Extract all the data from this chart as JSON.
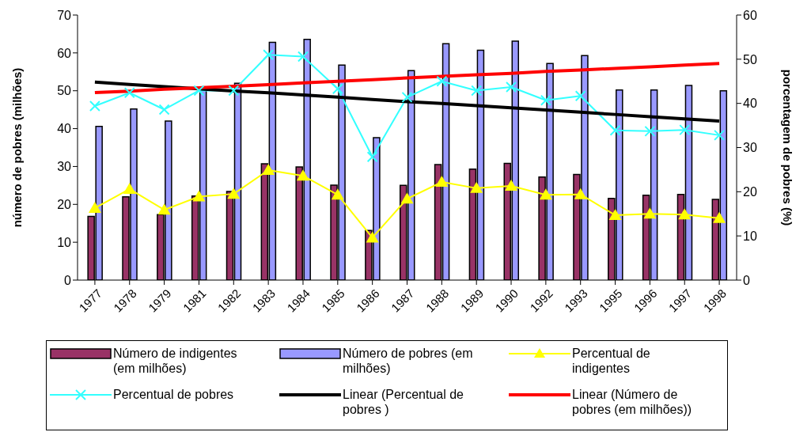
{
  "chart_data": {
    "type": "bar",
    "categories": [
      "1977",
      "1978",
      "1979",
      "1981",
      "1982",
      "1983",
      "1984",
      "1985",
      "1986",
      "1987",
      "1988",
      "1989",
      "1990",
      "1992",
      "1993",
      "1995",
      "1996",
      "1997",
      "1998"
    ],
    "ylabel": "número de pobres (milhões)",
    "y2label": "porcentagem de pobres (%)",
    "ylim": [
      0,
      70
    ],
    "yticks": [
      0,
      10,
      20,
      30,
      40,
      50,
      60,
      70
    ],
    "y2lim": [
      0,
      60
    ],
    "y2ticks": [
      0,
      10,
      20,
      30,
      40,
      50,
      60
    ],
    "legend": "bottom",
    "series": [
      {
        "name": "Número de indigentes (em milhões)",
        "color": "#993366",
        "values": [
          16.8,
          22,
          17.3,
          22.2,
          23.4,
          30.7,
          29.9,
          25.1,
          13.1,
          25,
          30.5,
          29.3,
          30.8,
          27.2,
          27.9,
          21.6,
          22.4,
          22.6,
          21.3
        ]
      },
      {
        "name": "Número de pobres (em milhões)",
        "color": "#9999ff",
        "values": [
          40.6,
          45.2,
          42,
          50.5,
          52,
          62.8,
          63.6,
          56.8,
          37.6,
          55.3,
          62.4,
          60.7,
          63.1,
          57.2,
          59.3,
          50.2,
          50.2,
          51.4,
          50
        ]
      },
      {
        "name": "Percentual de indigentes",
        "type": "line",
        "axis": "y2",
        "color": "#ffff00",
        "marker": "triangle",
        "values": [
          16.3,
          20.6,
          15.9,
          18.9,
          19.5,
          24.9,
          23.6,
          19.3,
          9.6,
          18.4,
          22.2,
          20.8,
          21.3,
          19.3,
          19.4,
          14.7,
          15,
          14.8,
          14
        ]
      },
      {
        "name": "Percentual de pobres",
        "type": "line",
        "axis": "y2",
        "color": "#33ffff",
        "marker": "cross",
        "values": [
          39.4,
          42.4,
          38.6,
          42.9,
          42.9,
          51,
          50.6,
          43.3,
          27.9,
          41.4,
          45,
          42.9,
          43.7,
          40.7,
          41.7,
          33.9,
          33.7,
          34,
          32.8
        ]
      },
      {
        "name": "Linear (Percentual de pobres )",
        "type": "line",
        "axis": "y2",
        "color": "#000000",
        "marker": "none",
        "values": [
          44.8,
          44.3,
          43.8,
          43.3,
          42.8,
          42.4,
          41.9,
          41.4,
          40.9,
          40.4,
          40.0,
          39.5,
          39.0,
          38.5,
          38.0,
          37.5,
          37.0,
          36.5,
          36.0
        ]
      },
      {
        "name": "Linear (Número de pobres (em milhões))",
        "type": "line",
        "color": "#ff0000",
        "marker": "none",
        "values": [
          49.5,
          49.9,
          50.4,
          50.8,
          51.2,
          51.6,
          52.1,
          52.5,
          52.9,
          53.4,
          53.8,
          54.2,
          54.6,
          55.1,
          55.5,
          55.9,
          56.3,
          56.8,
          57.2
        ]
      }
    ]
  }
}
